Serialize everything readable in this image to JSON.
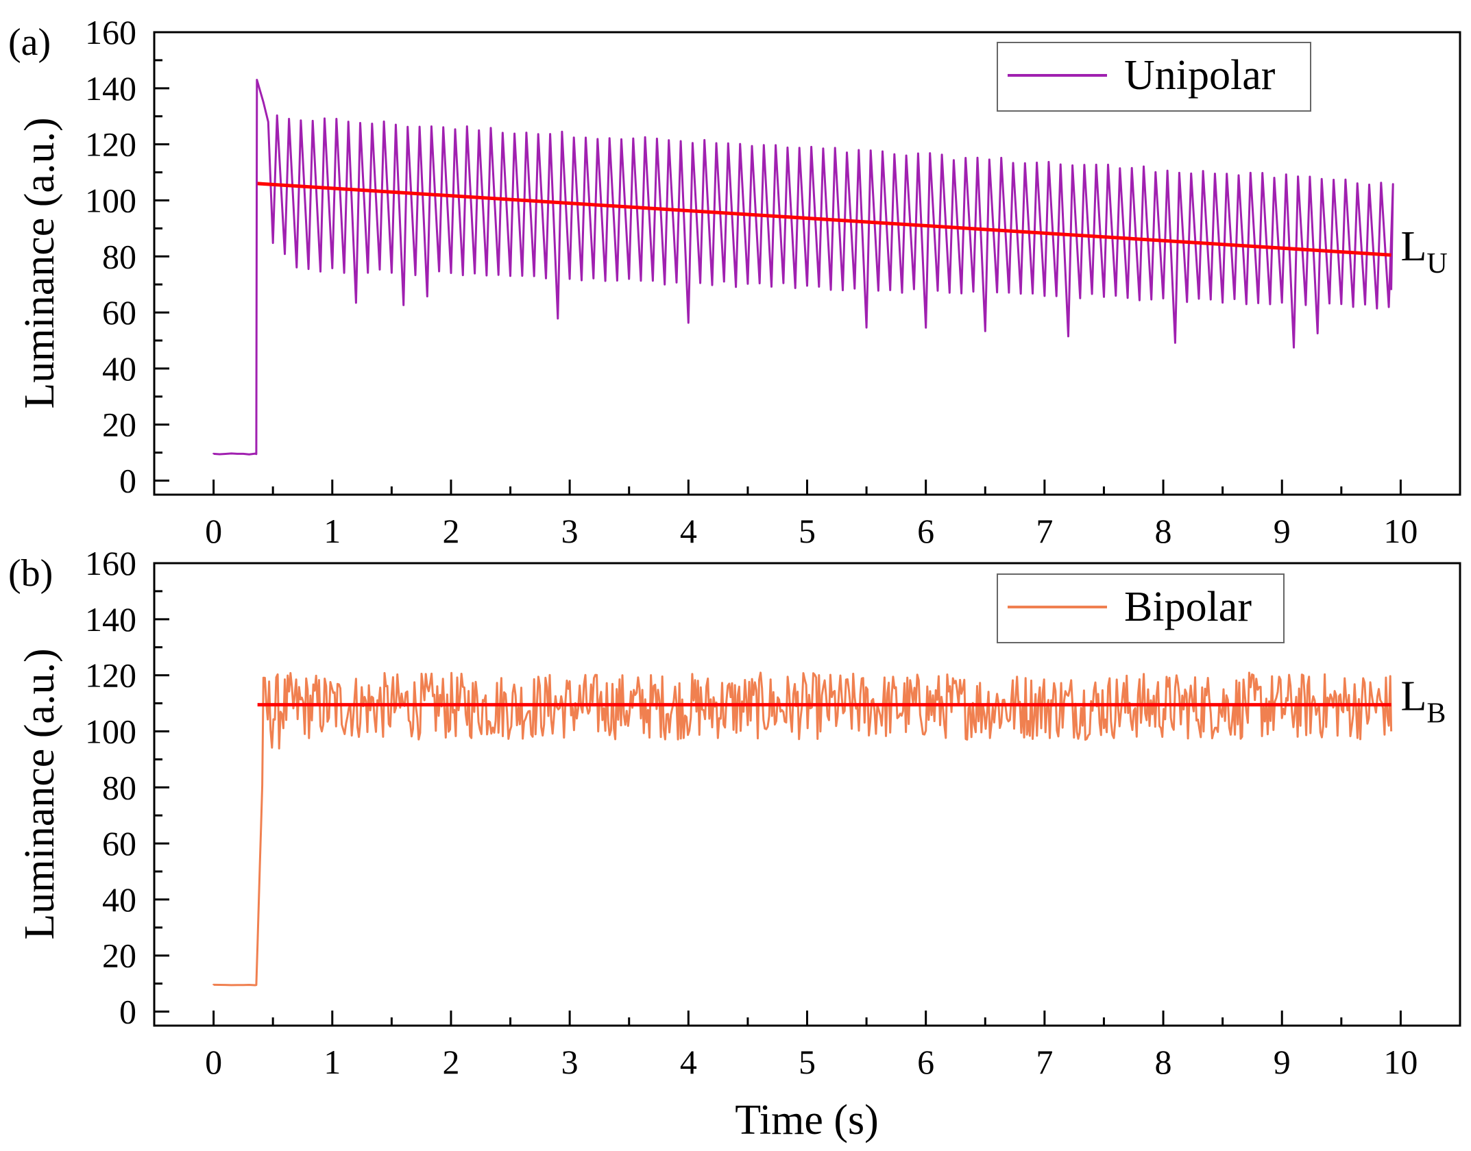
{
  "chart_data": [
    {
      "type": "line",
      "panel_label": "(a)",
      "xlabel": "",
      "ylabel": "Luminance (a.u.)",
      "xlim": [
        -0.5,
        10.5
      ],
      "ylim": [
        -5,
        160
      ],
      "xticks": [
        0,
        1,
        2,
        3,
        4,
        5,
        6,
        7,
        8,
        9,
        10
      ],
      "yticks": [
        0,
        20,
        40,
        60,
        80,
        100,
        120,
        140,
        160
      ],
      "legend": {
        "position": "top-right",
        "entries": [
          "Unipolar"
        ]
      },
      "series": [
        {
          "name": "Unipolar",
          "color": "#A020B0",
          "kind": "periodic-pulse",
          "baseline": 9.5,
          "onset_time": 0.36,
          "end_time": 9.92,
          "period_s": 0.1,
          "initial_peak": 143,
          "peak_start": 130,
          "peak_end": 106,
          "trough_start": 76,
          "trough_end": 62,
          "deep_dips": [
            {
              "t": 1.23,
              "y": 63
            },
            {
              "t": 1.62,
              "y": 62
            },
            {
              "t": 1.85,
              "y": 66
            },
            {
              "t": 2.94,
              "y": 58
            },
            {
              "t": 4.02,
              "y": 56
            },
            {
              "t": 5.47,
              "y": 55
            },
            {
              "t": 5.97,
              "y": 54
            },
            {
              "t": 6.48,
              "y": 53
            },
            {
              "t": 7.15,
              "y": 52
            },
            {
              "t": 8.05,
              "y": 50
            },
            {
              "t": 9.09,
              "y": 48
            },
            {
              "t": 9.28,
              "y": 53
            }
          ]
        }
      ],
      "fit_line": {
        "label_main": "L",
        "label_sub": "U",
        "color": "#FF0000",
        "x": [
          0.37,
          9.92
        ],
        "y": [
          106,
          80.5
        ]
      }
    },
    {
      "type": "line",
      "panel_label": "(b)",
      "xlabel": "Time (s)",
      "ylabel": "Luminance (a.u.)",
      "xlim": [
        -0.5,
        10.5
      ],
      "ylim": [
        -5,
        160
      ],
      "xticks": [
        0,
        1,
        2,
        3,
        4,
        5,
        6,
        7,
        8,
        9,
        10
      ],
      "yticks": [
        0,
        20,
        40,
        60,
        80,
        100,
        120,
        140,
        160
      ],
      "legend": {
        "position": "top-right",
        "entries": [
          "Bipolar"
        ]
      },
      "series": [
        {
          "name": "Bipolar",
          "color": "#F08050",
          "kind": "noisy-plateau",
          "baseline": 9.5,
          "onset_time": 0.36,
          "end_time": 9.92,
          "plateau_low": 97,
          "plateau_high": 121,
          "plateau_mean": 109.5
        }
      ],
      "fit_line": {
        "label_main": "L",
        "label_sub": "B",
        "color": "#FF0000",
        "x": [
          0.37,
          9.92
        ],
        "y": [
          109.5,
          109.5
        ]
      }
    }
  ]
}
